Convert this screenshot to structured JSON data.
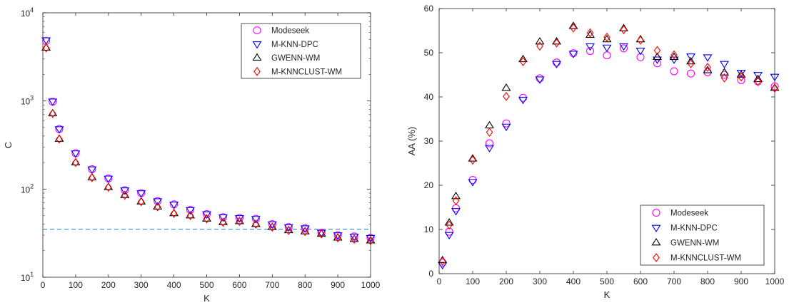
{
  "chart_data": [
    {
      "type": "scatter",
      "xlabel": "K",
      "ylabel": "C",
      "yscale": "log",
      "xlim": [
        0,
        1000
      ],
      "ylim": [
        10,
        10000
      ],
      "xticks": [
        "0",
        "100",
        "200",
        "300",
        "400",
        "500",
        "600",
        "700",
        "800",
        "900",
        "1000"
      ],
      "yticks": [
        {
          "base": "10",
          "exp": "1"
        },
        {
          "base": "10",
          "exp": "2"
        },
        {
          "base": "10",
          "exp": "3"
        },
        {
          "base": "10",
          "exp": "4"
        }
      ],
      "legend_position": "top-right",
      "reference_line": {
        "y": 35,
        "style": "dashed",
        "color": "#1f77d0"
      },
      "x": [
        10,
        30,
        50,
        100,
        150,
        200,
        250,
        300,
        350,
        400,
        450,
        500,
        550,
        600,
        650,
        700,
        750,
        800,
        850,
        900,
        950,
        1000
      ],
      "series": [
        {
          "name": "Modeseek",
          "marker": "circle",
          "color": "#ff00ff",
          "values": [
            4800,
            980,
            480,
            255,
            168,
            132,
            97,
            90,
            73,
            67,
            58,
            52,
            48,
            47,
            46,
            40,
            37,
            36,
            32,
            30,
            29,
            28
          ]
        },
        {
          "name": "M-KNN-DPC",
          "marker": "triangle-down",
          "color": "#0000ff",
          "values": [
            4900,
            990,
            480,
            255,
            168,
            132,
            97,
            90,
            73,
            67,
            58,
            52,
            48,
            47,
            46,
            40,
            37,
            36,
            32,
            30,
            29,
            28
          ]
        },
        {
          "name": "GWENN-WM",
          "marker": "triangle-up",
          "color": "#000000",
          "values": [
            4000,
            720,
            370,
            200,
            135,
            105,
            85,
            72,
            63,
            53,
            50,
            46,
            42,
            43,
            40,
            37,
            34,
            33,
            31,
            28,
            27,
            26
          ]
        },
        {
          "name": "M-KNNCLUST-WM",
          "marker": "diamond",
          "color": "#ff0000",
          "values": [
            4000,
            720,
            370,
            200,
            135,
            105,
            85,
            72,
            63,
            53,
            50,
            46,
            42,
            43,
            40,
            37,
            34,
            33,
            31,
            28,
            27,
            26
          ]
        }
      ]
    },
    {
      "type": "scatter",
      "xlabel": "K",
      "ylabel": "AA (%)",
      "yscale": "linear",
      "xlim": [
        0,
        1000
      ],
      "ylim": [
        0,
        60
      ],
      "xticks": [
        "0",
        "100",
        "200",
        "300",
        "400",
        "500",
        "600",
        "700",
        "800",
        "900",
        "1000"
      ],
      "yticks": [
        "0",
        "10",
        "20",
        "30",
        "40",
        "50",
        "60"
      ],
      "legend_position": "bottom-right",
      "x": [
        10,
        30,
        50,
        100,
        150,
        200,
        250,
        300,
        350,
        400,
        450,
        500,
        550,
        600,
        650,
        700,
        750,
        800,
        850,
        900,
        950,
        1000
      ],
      "series": [
        {
          "name": "Modeseek",
          "marker": "circle",
          "color": "#ff00ff",
          "values": [
            2.5,
            9.5,
            14.8,
            21.2,
            29.5,
            34.0,
            39.8,
            44.2,
            47.8,
            49.9,
            50.4,
            49.4,
            51.0,
            49.0,
            47.6,
            45.8,
            45.3,
            45.6,
            45.0,
            43.8,
            43.5,
            42.4
          ]
        },
        {
          "name": "M-KNN-DPC",
          "marker": "triangle-down",
          "color": "#0000ff",
          "values": [
            2.0,
            8.8,
            14.2,
            20.8,
            28.5,
            33.3,
            39.4,
            44.0,
            47.5,
            49.8,
            51.5,
            51.2,
            51.5,
            50.5,
            48.5,
            48.5,
            49.2,
            49.0,
            47.5,
            45.5,
            45.0,
            44.6
          ]
        },
        {
          "name": "GWENN-WM",
          "marker": "triangle-up",
          "color": "#000000",
          "values": [
            3.0,
            11.5,
            17.5,
            26.0,
            33.5,
            42.0,
            48.5,
            52.5,
            52.5,
            56.0,
            54.0,
            53.0,
            55.5,
            53.0,
            49.0,
            49.0,
            48.0,
            46.0,
            45.5,
            45.0,
            44.0,
            42.0
          ]
        },
        {
          "name": "M-KNNCLUST-WM",
          "marker": "diamond",
          "color": "#ff0000",
          "values": [
            2.8,
            11.0,
            16.5,
            25.7,
            32.0,
            40.1,
            48.0,
            51.5,
            52.2,
            55.6,
            54.5,
            53.5,
            55.2,
            52.8,
            50.5,
            49.5,
            47.5,
            46.7,
            44.3,
            44.5,
            43.5,
            42.0
          ]
        }
      ]
    }
  ]
}
